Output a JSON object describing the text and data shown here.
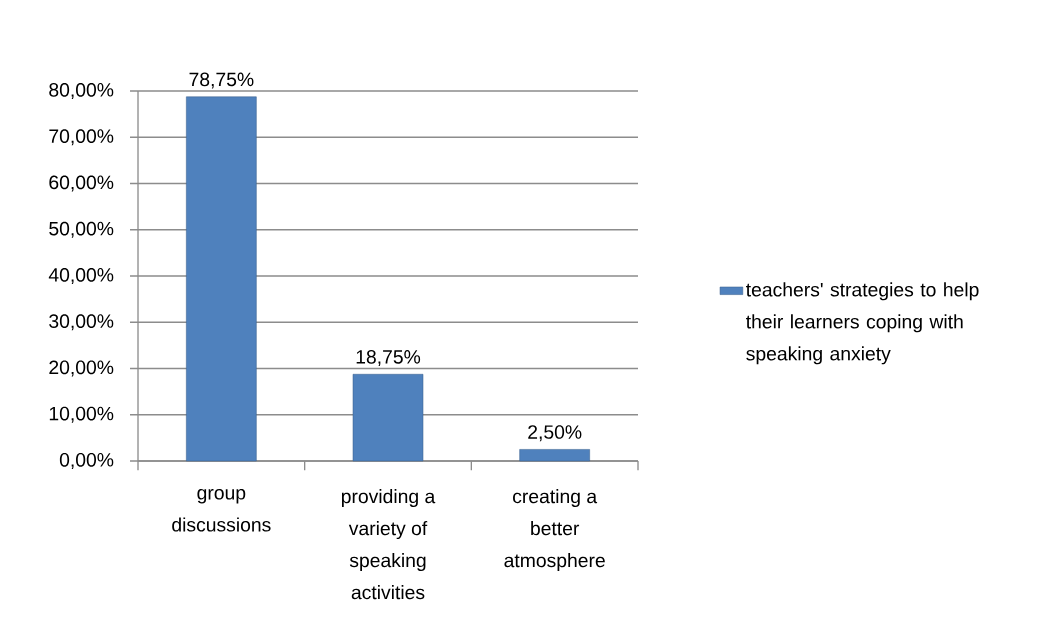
{
  "chart_data": {
    "type": "bar",
    "categories": [
      "group discussions",
      "providing a variety of speaking activities",
      "creating a better atmosphere"
    ],
    "series": [
      {
        "name": "teachers' strategies to help their learners coping with speaking anxiety",
        "color": "#4f81bd",
        "values": [
          78.75,
          18.75,
          2.5
        ],
        "value_labels": [
          "78,75%",
          "18,75%",
          "2,50%"
        ]
      }
    ],
    "ylim": [
      0,
      80
    ],
    "yticks": [
      {
        "value": 0,
        "label": "0,00%"
      },
      {
        "value": 10,
        "label": "10,00%"
      },
      {
        "value": 20,
        "label": "20,00%"
      },
      {
        "value": 30,
        "label": "30,00%"
      },
      {
        "value": 40,
        "label": "40,00%"
      },
      {
        "value": 50,
        "label": "50,00%"
      },
      {
        "value": 60,
        "label": "60,00%"
      },
      {
        "value": 70,
        "label": "70,00%"
      },
      {
        "value": 80,
        "label": "80,00%"
      }
    ],
    "grid": "y",
    "legend": "right"
  }
}
